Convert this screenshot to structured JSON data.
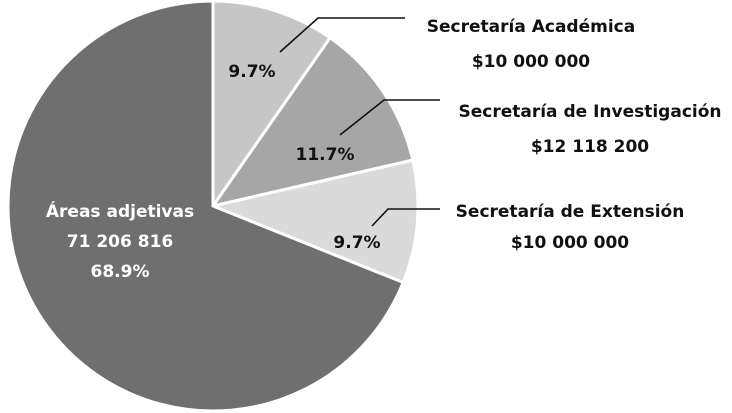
{
  "chart_data": {
    "type": "pie",
    "categories": [
      "Secretaría Académica",
      "Secretaría de Investigación",
      "Secretaría de Extensión",
      "Áreas adjetivas"
    ],
    "values": [
      10000000,
      12118200,
      10000000,
      71206816
    ],
    "value_labels": [
      "$10 000 000",
      "$12 118 200",
      "$10 000 000",
      "71 206 816"
    ],
    "percentages": [
      9.7,
      11.7,
      9.7,
      68.9
    ],
    "percentage_labels": [
      "9.7%",
      "11.7%",
      "9.7%",
      "68.9%"
    ],
    "colors": [
      "#c6c6c6",
      "#a6a6a6",
      "#dadada",
      "#6f6f6f"
    ]
  }
}
